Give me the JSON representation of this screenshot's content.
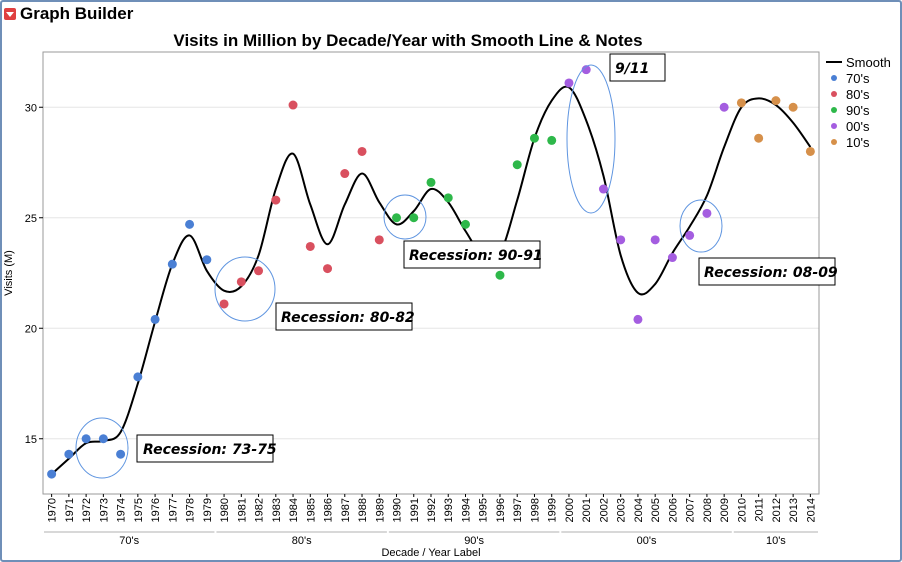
{
  "window": {
    "title": "Graph Builder"
  },
  "chart_data": {
    "type": "scatter",
    "title": "Visits in Million by Decade/Year with Smooth Line & Notes",
    "xlabel": "Decade / Year Label",
    "ylabel": "Visits (M)",
    "ylim": [
      12.5,
      32.5
    ],
    "yticks": [
      15,
      20,
      25,
      30
    ],
    "x": [
      "1970",
      "1971",
      "1972",
      "1973",
      "1974",
      "1975",
      "1976",
      "1977",
      "1978",
      "1979",
      "1980",
      "1981",
      "1982",
      "1983",
      "1984",
      "1985",
      "1986",
      "1987",
      "1988",
      "1989",
      "1990",
      "1991",
      "1992",
      "1993",
      "1994",
      "1995",
      "1996",
      "1997",
      "1998",
      "1999",
      "2000",
      "2001",
      "2002",
      "2003",
      "2004",
      "2005",
      "2006",
      "2007",
      "2008",
      "2009",
      "2010",
      "2011",
      "2012",
      "2013",
      "2014"
    ],
    "decades": [
      {
        "label": "70's",
        "start": 0,
        "end": 9
      },
      {
        "label": "80's",
        "start": 10,
        "end": 19
      },
      {
        "label": "90's",
        "start": 20,
        "end": 29
      },
      {
        "label": "00's",
        "start": 30,
        "end": 39
      },
      {
        "label": "10's",
        "start": 40,
        "end": 44
      }
    ],
    "series": [
      {
        "name": "70's",
        "color": "#4a7fd4",
        "points": [
          [
            0,
            13.4
          ],
          [
            1,
            14.3
          ],
          [
            2,
            15.0
          ],
          [
            3,
            15.0
          ],
          [
            4,
            14.3
          ],
          [
            5,
            17.8
          ],
          [
            6,
            20.4
          ],
          [
            7,
            22.9
          ],
          [
            8,
            24.7
          ],
          [
            9,
            23.1
          ]
        ]
      },
      {
        "name": "80's",
        "color": "#d9505f",
        "points": [
          [
            10,
            21.1
          ],
          [
            11,
            22.1
          ],
          [
            12,
            22.6
          ],
          [
            13,
            25.8
          ],
          [
            14,
            30.1
          ],
          [
            15,
            23.7
          ],
          [
            16,
            22.7
          ],
          [
            17,
            27.0
          ],
          [
            18,
            28.0
          ],
          [
            19,
            24.0
          ]
        ]
      },
      {
        "name": "90's",
        "color": "#2eb84a",
        "points": [
          [
            20,
            25.0
          ],
          [
            21,
            25.0
          ],
          [
            22,
            26.6
          ],
          [
            23,
            25.9
          ],
          [
            24,
            24.7
          ],
          [
            26,
            22.4
          ],
          [
            27,
            27.4
          ],
          [
            28,
            28.6
          ],
          [
            29,
            28.5
          ]
        ]
      },
      {
        "name": "00's",
        "color": "#a45de0",
        "points": [
          [
            30,
            31.1
          ],
          [
            31,
            31.7
          ],
          [
            32,
            26.3
          ],
          [
            33,
            24.0
          ],
          [
            34,
            20.4
          ],
          [
            35,
            24.0
          ],
          [
            36,
            23.2
          ],
          [
            37,
            24.2
          ],
          [
            38,
            25.2
          ],
          [
            39,
            30.0
          ]
        ]
      },
      {
        "name": "10's",
        "color": "#d6904a",
        "points": [
          [
            40,
            30.2
          ],
          [
            41,
            28.6
          ],
          [
            42,
            30.3
          ],
          [
            43,
            30.0
          ],
          [
            44,
            28.0
          ]
        ]
      }
    ],
    "smooth": {
      "name": "Smooth",
      "color": "#000000",
      "points": [
        [
          0,
          13.4
        ],
        [
          1,
          14.1
        ],
        [
          2,
          14.8
        ],
        [
          3,
          14.9
        ],
        [
          4,
          15.3
        ],
        [
          5,
          17.5
        ],
        [
          6,
          20.3
        ],
        [
          7,
          22.9
        ],
        [
          8,
          24.2
        ],
        [
          9,
          22.6
        ],
        [
          10,
          21.7
        ],
        [
          11,
          21.9
        ],
        [
          12,
          23.3
        ],
        [
          13,
          26.3
        ],
        [
          14,
          27.9
        ],
        [
          15,
          25.6
        ],
        [
          16,
          23.8
        ],
        [
          17,
          25.6
        ],
        [
          18,
          27.0
        ],
        [
          19,
          25.7
        ],
        [
          20,
          24.7
        ],
        [
          21,
          25.3
        ],
        [
          22,
          26.3
        ],
        [
          23,
          25.7
        ],
        [
          24,
          24.4
        ],
        [
          25,
          23.3
        ],
        [
          26,
          23.4
        ],
        [
          27,
          25.8
        ],
        [
          28,
          28.6
        ],
        [
          29,
          30.3
        ],
        [
          30,
          30.9
        ],
        [
          31,
          29.4
        ],
        [
          32,
          26.9
        ],
        [
          33,
          23.3
        ],
        [
          34,
          21.6
        ],
        [
          35,
          22.0
        ],
        [
          36,
          23.4
        ],
        [
          37,
          24.6
        ],
        [
          38,
          26.0
        ],
        [
          39,
          28.2
        ],
        [
          40,
          30.0
        ],
        [
          41,
          30.4
        ],
        [
          42,
          30.1
        ],
        [
          43,
          29.3
        ],
        [
          44,
          28.2
        ]
      ]
    },
    "annotations": [
      "Recession: 73-75",
      "Recession: 80-82",
      "Recession: 90-91",
      "9/11",
      "Recession: 08-09"
    ],
    "legend_position": "right"
  }
}
